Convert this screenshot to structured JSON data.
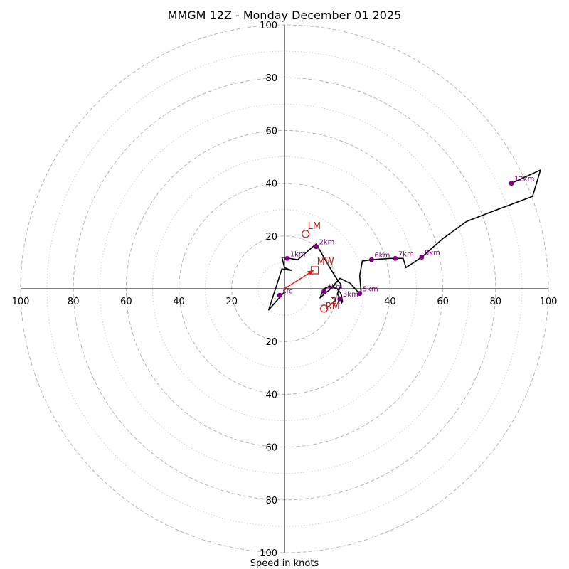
{
  "chart_data": {
    "type": "hodograph",
    "title": "MMGM 12Z - Monday December 01 2025",
    "xlabel": "Speed in knots",
    "ring_labels": [
      "20",
      "40",
      "60",
      "80",
      "100"
    ],
    "rings_dashed": [
      20,
      40,
      60,
      80,
      100
    ],
    "rings_dotted": [
      10,
      30,
      50,
      70,
      90
    ],
    "range": [
      -100,
      100
    ],
    "hodograph": [
      [
        0.0,
        -1.2
      ],
      [
        -6.0,
        -8.0
      ],
      [
        -1.0,
        7.5
      ],
      [
        2.5,
        7.0
      ],
      [
        0.0,
        8.0
      ],
      [
        -1.0,
        12.0
      ],
      [
        5.0,
        11.0
      ],
      [
        12.0,
        17.0
      ],
      [
        16.0,
        10.0
      ],
      [
        19.0,
        5.0
      ],
      [
        20.0,
        3.5
      ],
      [
        21.5,
        1.5
      ],
      [
        20.0,
        -2.0
      ],
      [
        21.0,
        -3.5
      ],
      [
        22.0,
        -5.0
      ],
      [
        21.5,
        -2.0
      ],
      [
        20.0,
        0.0
      ],
      [
        17.0,
        1.0
      ],
      [
        15.0,
        0.0
      ],
      [
        14.0,
        -2.0
      ],
      [
        13.5,
        -3.5
      ],
      [
        15.0,
        -2.0
      ],
      [
        17.0,
        -0.5
      ],
      [
        21.0,
        4.0
      ],
      [
        25.0,
        2.0
      ],
      [
        28.5,
        -2.0
      ],
      [
        29.0,
        -1.0
      ],
      [
        28.5,
        5.0
      ],
      [
        29.5,
        10.5
      ],
      [
        33.0,
        11.0
      ],
      [
        40.0,
        11.5
      ],
      [
        45.0,
        11.5
      ],
      [
        46.0,
        8.0
      ],
      [
        52.0,
        12.0
      ],
      [
        60.0,
        19.0
      ],
      [
        69.0,
        25.5
      ],
      [
        78.0,
        29.0
      ],
      [
        94.0,
        35.0
      ],
      [
        97.0,
        45.0
      ],
      [
        86.0,
        40.0
      ]
    ],
    "height_points": [
      {
        "label": "1km",
        "u": 1.0,
        "v": 11.5
      },
      {
        "label": "2km",
        "u": 12.0,
        "v": 16.0
      },
      {
        "label": "3km",
        "u": 21.0,
        "v": -3.8
      },
      {
        "label": "4km",
        "u": 15.0,
        "v": -1.0
      },
      {
        "label": "5km",
        "u": 28.5,
        "v": -1.8
      },
      {
        "label": "6km",
        "u": 33.0,
        "v": 11.0
      },
      {
        "label": "7km",
        "u": 42.0,
        "v": 11.5
      },
      {
        "label": "8km",
        "u": 52.0,
        "v": 12.0
      },
      {
        "label": "12km",
        "u": 86.0,
        "v": 40.0
      },
      {
        "label": "sfc",
        "u": -1.8,
        "v": -2.5
      }
    ],
    "markers": {
      "lm": {
        "label": "LM",
        "u": 8.0,
        "v": 20.8
      },
      "mw": {
        "label": "MW",
        "u": 11.5,
        "v": 7.0
      },
      "rm": {
        "label": "RM",
        "u": 15.0,
        "v": -7.5
      }
    },
    "shear_vector": {
      "from": [
        0,
        0
      ],
      "to": [
        11.0,
        7.0
      ]
    },
    "annotation": "2"
  }
}
